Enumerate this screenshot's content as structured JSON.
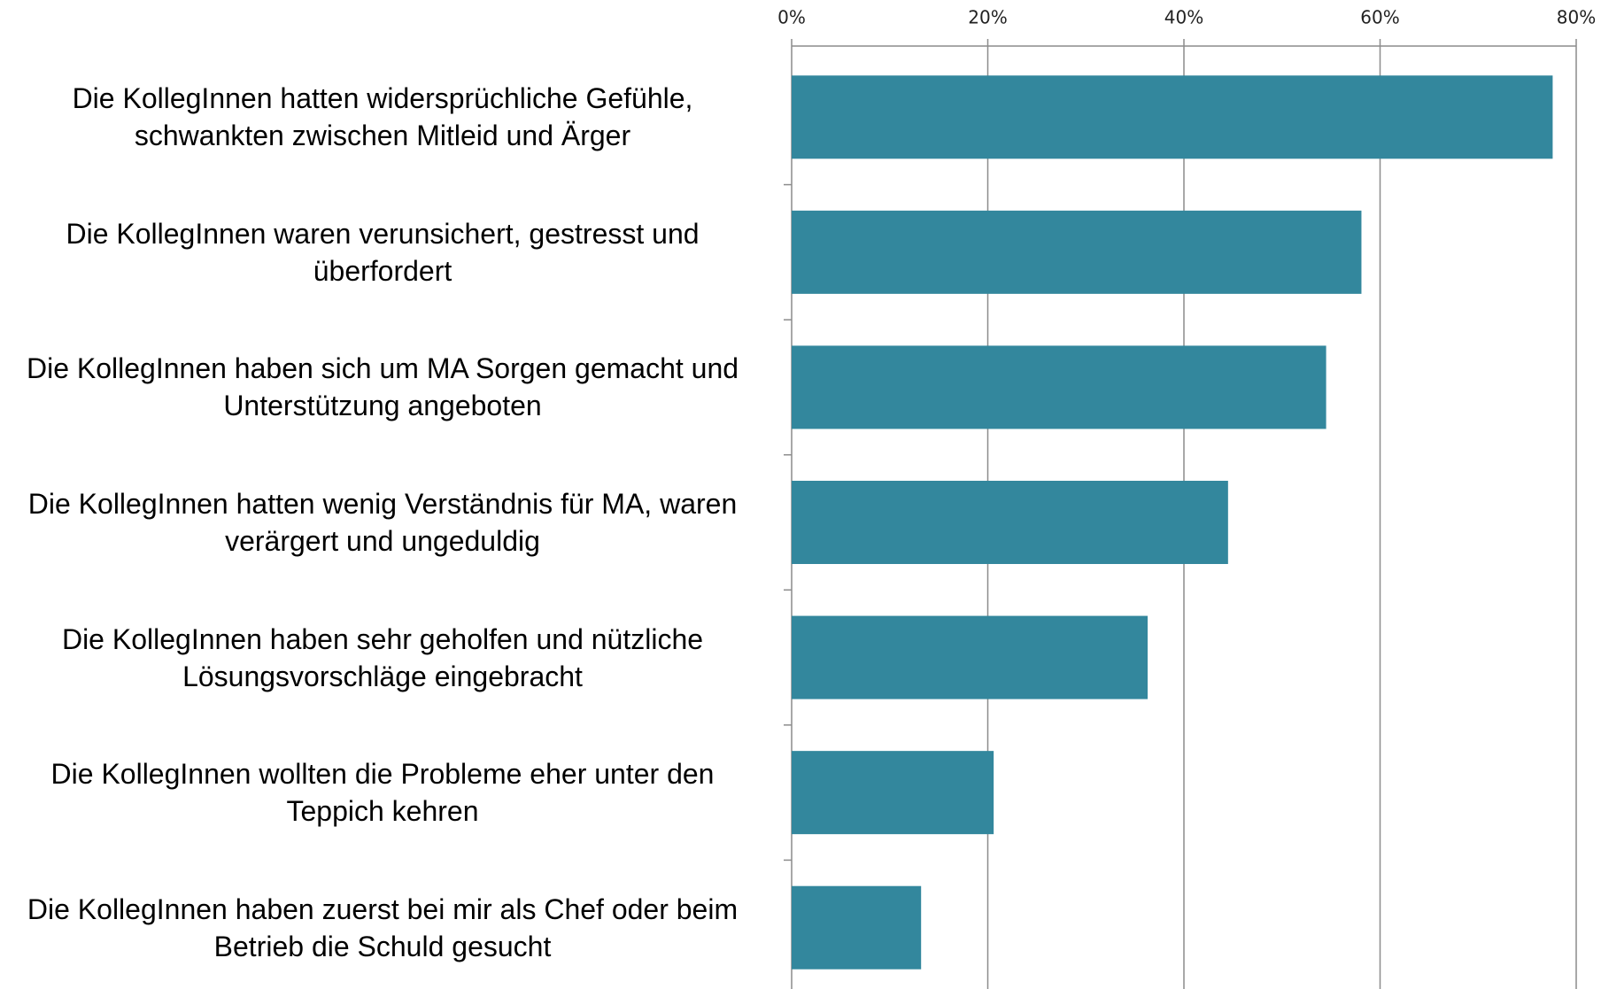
{
  "chart_data": {
    "type": "bar",
    "orientation": "horizontal",
    "categories": [
      "Die KollegInnen hatten widersprüchliche Gefühle, schwankten zwischen Mitleid und Ärger",
      "Die KollegInnen waren verunsichert, gestresst und überfordert",
      "Die KollegInnen haben sich um MA Sorgen gemacht und Unterstützung angeboten",
      "Die KollegInnen hatten wenig Verständnis für MA, waren verärgert und ungeduldig",
      "Die KollegInnen haben sehr geholfen und nützliche Lösungsvorschläge eingebracht",
      "Die KollegInnen wollten die Probleme eher unter den Teppich kehren",
      "Die KollegInnen haben zuerst bei mir als Chef oder beim Betrieb die Schuld gesucht"
    ],
    "values": [
      77.6,
      58.1,
      54.5,
      44.5,
      36.3,
      20.6,
      13.2
    ],
    "color": "#33879d",
    "xlim": [
      0,
      80
    ],
    "xticks": [
      {
        "value": 0,
        "label": "0%"
      },
      {
        "value": 20,
        "label": "20%"
      },
      {
        "value": 40,
        "label": "40%"
      },
      {
        "value": 60,
        "label": "60%"
      },
      {
        "value": 80,
        "label": "80%"
      }
    ],
    "grid": true
  }
}
